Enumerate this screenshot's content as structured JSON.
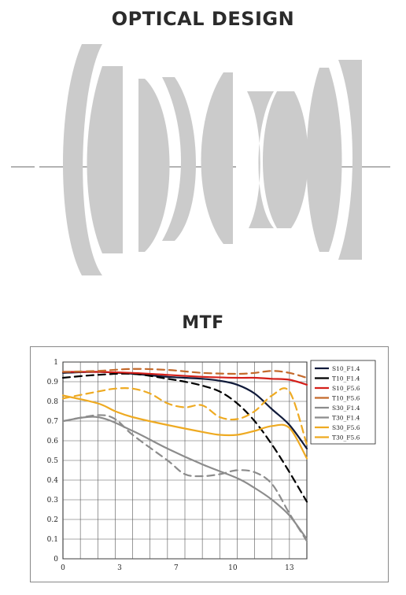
{
  "titles": {
    "optical": "OPTICAL DESIGN",
    "mtf": "MTF"
  },
  "colors": {
    "lens": "#cbcbcb",
    "axis": "#9a9a9a",
    "navy": "#101a3a",
    "black": "#000000",
    "red": "#d41f1a",
    "brown": "#c4692b",
    "gray": "#8c8c8c",
    "orange": "#eeaa22"
  },
  "chart_data": {
    "type": "line",
    "xlim": [
      0,
      14
    ],
    "ylim": [
      0,
      1
    ],
    "xticks": [
      "0",
      "3",
      "7",
      "10",
      "13"
    ],
    "xtick_values": [
      0,
      3.25,
      6.5,
      9.75,
      13
    ],
    "yticks": [
      "0",
      "0.1",
      "0.2",
      "0.3",
      "0.4",
      "0.5",
      "0.6",
      "0.7",
      "0.8",
      "0.9",
      "1"
    ],
    "grid": true,
    "legend_position": "top-right",
    "series": [
      {
        "name": "S10_F1.4",
        "color": "#101a3a",
        "dash": false,
        "x": [
          0,
          2,
          4,
          6,
          8,
          9,
          10,
          11,
          12,
          13,
          14
        ],
        "y": [
          0.945,
          0.95,
          0.94,
          0.925,
          0.915,
          0.905,
          0.885,
          0.84,
          0.76,
          0.68,
          0.56
        ]
      },
      {
        "name": "T10_F1.4",
        "color": "#000000",
        "dash": true,
        "x": [
          0,
          2,
          4,
          6,
          7,
          8,
          9,
          10,
          11,
          12,
          13,
          14
        ],
        "y": [
          0.92,
          0.935,
          0.94,
          0.915,
          0.9,
          0.88,
          0.85,
          0.79,
          0.7,
          0.58,
          0.44,
          0.29
        ]
      },
      {
        "name": "S10_F5.6",
        "color": "#d41f1a",
        "dash": false,
        "x": [
          0,
          2,
          4,
          6,
          8,
          10,
          11,
          12,
          13,
          14
        ],
        "y": [
          0.95,
          0.95,
          0.945,
          0.935,
          0.925,
          0.92,
          0.92,
          0.915,
          0.91,
          0.885
        ]
      },
      {
        "name": "T10_F5.6",
        "color": "#c4692b",
        "dash": true,
        "x": [
          0,
          2,
          4,
          6,
          8,
          10,
          11,
          12,
          13,
          14
        ],
        "y": [
          0.95,
          0.955,
          0.965,
          0.96,
          0.945,
          0.94,
          0.945,
          0.955,
          0.945,
          0.92
        ]
      },
      {
        "name": "S30_F1.4",
        "color": "#8c8c8c",
        "dash": false,
        "x": [
          0,
          2,
          4,
          6,
          8,
          10,
          11,
          12,
          13,
          14
        ],
        "y": [
          0.7,
          0.72,
          0.65,
          0.56,
          0.48,
          0.41,
          0.36,
          0.3,
          0.22,
          0.1
        ]
      },
      {
        "name": "T30_F1.4",
        "color": "#8c8c8c",
        "dash": true,
        "x": [
          0,
          2,
          3,
          4,
          6,
          7,
          8,
          9,
          10,
          11,
          12,
          13,
          14
        ],
        "y": [
          0.7,
          0.73,
          0.71,
          0.63,
          0.5,
          0.43,
          0.42,
          0.43,
          0.45,
          0.44,
          0.38,
          0.23,
          0.09
        ]
      },
      {
        "name": "S30_F5.6",
        "color": "#eeaa22",
        "dash": false,
        "x": [
          0,
          2,
          3,
          4,
          6,
          8,
          9,
          10,
          11,
          12,
          13,
          14
        ],
        "y": [
          0.83,
          0.79,
          0.75,
          0.72,
          0.68,
          0.645,
          0.63,
          0.63,
          0.65,
          0.675,
          0.665,
          0.51
        ]
      },
      {
        "name": "T30_F5.6",
        "color": "#eeaa22",
        "dash": true,
        "x": [
          0,
          2,
          3,
          4,
          5,
          6,
          7,
          8,
          9,
          10,
          11,
          12,
          13,
          14
        ],
        "y": [
          0.815,
          0.85,
          0.865,
          0.865,
          0.84,
          0.79,
          0.77,
          0.78,
          0.72,
          0.71,
          0.75,
          0.83,
          0.85,
          0.58
        ]
      }
    ]
  }
}
